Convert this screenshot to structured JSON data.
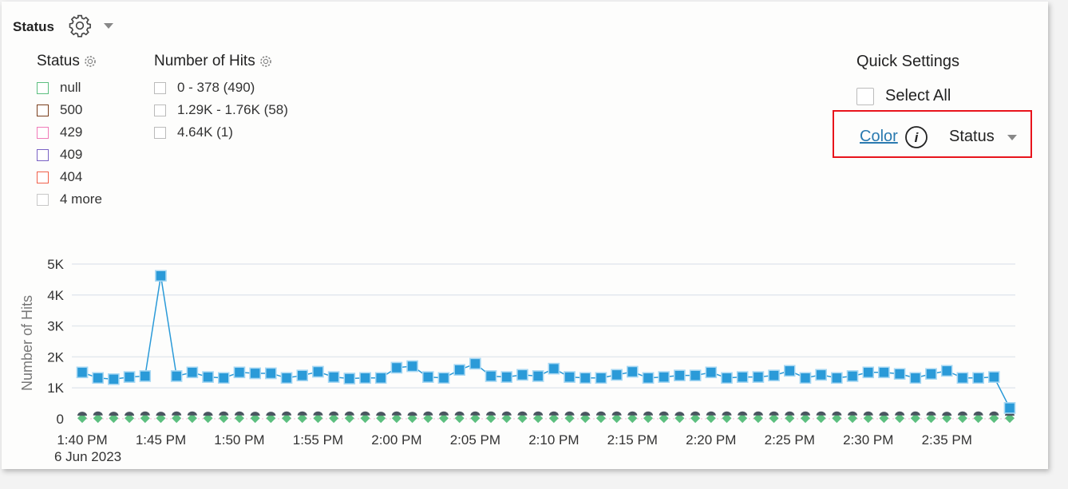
{
  "header": {
    "title": "Status",
    "settings_icon": "gear-icon",
    "menu_icon": "caret-down-icon"
  },
  "legend_status": {
    "title": "Status",
    "items": [
      {
        "label": "null",
        "color": "#5cbf7f"
      },
      {
        "label": "500",
        "color": "#7a3e1c"
      },
      {
        "label": "429",
        "color": "#f07bb8"
      },
      {
        "label": "409",
        "color": "#7a62c4"
      },
      {
        "label": "404",
        "color": "#f0604a"
      },
      {
        "label": "4 more",
        "color": "#c8c8c8"
      }
    ]
  },
  "legend_hits": {
    "title": "Number of Hits",
    "items": [
      {
        "label": "0 - 378 (490)"
      },
      {
        "label": "1.29K - 1.76K (58)"
      },
      {
        "label": "4.64K (1)"
      }
    ]
  },
  "quick_settings": {
    "title": "Quick Settings",
    "select_all": "Select All",
    "color_link": "Color",
    "info_icon": "info-icon",
    "color_value": "Status"
  },
  "chart_data": {
    "type": "line",
    "ylabel": "Number of Hits",
    "ylim": [
      0,
      5000
    ],
    "yticks": [
      "0",
      "1K",
      "2K",
      "3K",
      "4K",
      "5K"
    ],
    "xticks": [
      "1:40 PM",
      "1:45 PM",
      "1:50 PM",
      "1:55 PM",
      "2:00 PM",
      "2:05 PM",
      "2:10 PM",
      "2:15 PM",
      "2:20 PM",
      "2:25 PM",
      "2:30 PM",
      "2:35 PM"
    ],
    "xsub": "6 Jun 2023",
    "grid": true,
    "series": [
      {
        "color": "#2a9ad8",
        "marker": "square",
        "values": [
          1500,
          1320,
          1280,
          1350,
          1380,
          4620,
          1380,
          1500,
          1350,
          1320,
          1500,
          1470,
          1470,
          1320,
          1400,
          1520,
          1350,
          1300,
          1320,
          1320,
          1650,
          1700,
          1350,
          1320,
          1580,
          1780,
          1380,
          1350,
          1420,
          1380,
          1620,
          1350,
          1320,
          1320,
          1420,
          1520,
          1320,
          1350,
          1400,
          1400,
          1500,
          1320,
          1350,
          1350,
          1400,
          1550,
          1320,
          1420,
          1320,
          1380,
          1500,
          1500,
          1450,
          1320,
          1450,
          1550,
          1320,
          1320,
          1350,
          350
        ]
      },
      {
        "color": "#4a5560",
        "marker": "semicircle",
        "values": [
          150,
          160,
          150,
          150,
          160,
          150,
          160,
          160,
          150,
          160,
          160,
          150,
          150,
          160,
          160,
          160,
          160,
          160,
          160,
          150,
          160,
          150,
          160,
          160,
          160,
          160,
          160,
          160,
          160,
          160,
          160,
          160,
          150,
          160,
          160,
          160,
          160,
          160,
          150,
          160,
          160,
          160,
          160,
          160,
          160,
          160,
          160,
          160,
          160,
          160,
          160,
          150,
          160,
          160,
          160,
          150,
          160,
          160,
          160,
          150
        ]
      },
      {
        "color": "#5cbf7f",
        "marker": "diamond",
        "values": [
          20,
          20,
          20,
          20,
          20,
          20,
          20,
          20,
          20,
          20,
          20,
          20,
          20,
          20,
          20,
          20,
          20,
          20,
          20,
          20,
          20,
          20,
          20,
          20,
          20,
          20,
          20,
          20,
          20,
          20,
          20,
          20,
          20,
          20,
          20,
          20,
          20,
          20,
          20,
          20,
          20,
          20,
          20,
          20,
          20,
          20,
          20,
          20,
          20,
          20,
          20,
          20,
          20,
          20,
          20,
          20,
          20,
          20,
          20,
          20
        ]
      }
    ]
  }
}
